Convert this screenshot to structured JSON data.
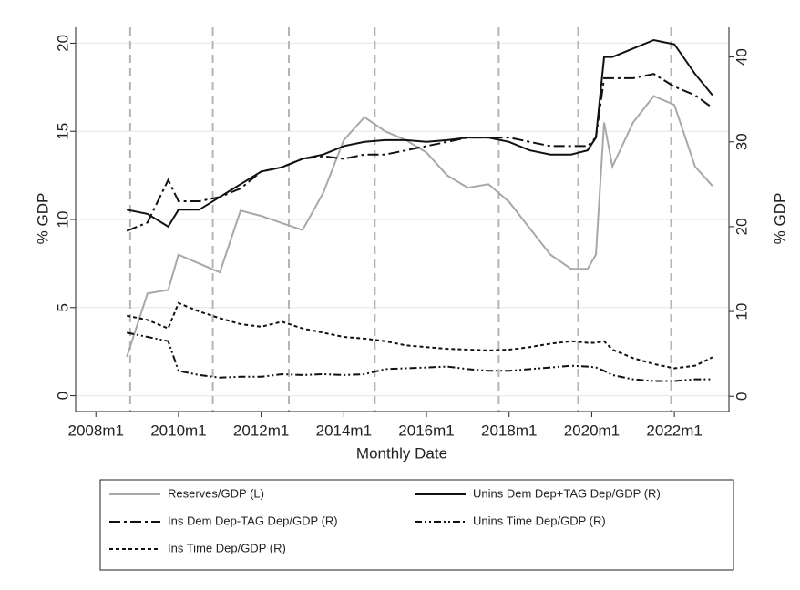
{
  "chart_data": {
    "type": "line",
    "xlabel": "Monthly Date",
    "ylabel": "% GDP",
    "y2label": "% GDP",
    "x": [
      2008.75,
      2009.25,
      2009.75,
      2010.0,
      2010.5,
      2011.0,
      2011.5,
      2012.0,
      2012.5,
      2013.0,
      2013.5,
      2014.0,
      2014.5,
      2015.0,
      2015.5,
      2016.0,
      2016.5,
      2017.0,
      2017.5,
      2018.0,
      2018.5,
      2019.0,
      2019.5,
      2019.9,
      2020.1,
      2020.3,
      2020.5,
      2021.0,
      2021.5,
      2022.0,
      2022.5,
      2022.92
    ],
    "series": [
      {
        "name": "Reserves/GDP (L)",
        "color": "#a8a8a8",
        "dash": "none",
        "axis": "y",
        "values": [
          2.2,
          5.8,
          6.0,
          8.0,
          7.5,
          7.0,
          10.5,
          10.2,
          9.8,
          9.4,
          11.5,
          14.5,
          15.8,
          15.0,
          14.5,
          13.8,
          12.5,
          11.8,
          12.0,
          11.0,
          9.5,
          8.0,
          7.2,
          7.2,
          8.0,
          15.5,
          13.0,
          15.5,
          17.0,
          16.5,
          13.0,
          11.9
        ]
      },
      {
        "name": "Unins Dem Dep+TAG Dep/GDP (R)",
        "color": "#111111",
        "dash": "none",
        "axis": "y2",
        "values": [
          22,
          21.5,
          20,
          22,
          22,
          23.5,
          25,
          26.5,
          27,
          28,
          28.5,
          29.5,
          30,
          30.2,
          30.2,
          30,
          30.2,
          30.5,
          30.5,
          30,
          29,
          28.5,
          28.5,
          29,
          30.5,
          40,
          40,
          41,
          42,
          41.5,
          38,
          35.5
        ]
      },
      {
        "name": "Ins Dem Dep-TAG Dep/GDP (R)",
        "color": "#111111",
        "dash": "12,4,3,4",
        "axis": "y2",
        "values": [
          19.5,
          20.5,
          25.5,
          23,
          23,
          23.5,
          24.5,
          26.5,
          27,
          28,
          28.3,
          28,
          28.5,
          28.5,
          29,
          29.5,
          30,
          30.5,
          30.5,
          30.5,
          30,
          29.5,
          29.5,
          29.5,
          30.5,
          37.5,
          37.5,
          37.5,
          38,
          36.5,
          35.5,
          34
        ]
      },
      {
        "name": "Unins Time Dep/GDP (R)",
        "color": "#111111",
        "dash": "8,3,2,3,2,3",
        "axis": "y2",
        "values": [
          7.5,
          7,
          6.5,
          3,
          2.5,
          2.2,
          2.3,
          2.3,
          2.6,
          2.5,
          2.6,
          2.5,
          2.6,
          3.2,
          3.3,
          3.4,
          3.5,
          3.2,
          3.0,
          3.0,
          3.2,
          3.4,
          3.6,
          3.5,
          3.4,
          3.0,
          2.5,
          2.0,
          1.8,
          1.8,
          2.0,
          2.0
        ]
      },
      {
        "name": "Ins Time Dep/GDP (R)",
        "color": "#111111",
        "dash": "4,3",
        "axis": "y2",
        "values": [
          9.5,
          9,
          8,
          11,
          10,
          9.2,
          8.5,
          8.2,
          8.8,
          8,
          7.5,
          7,
          6.8,
          6.5,
          6,
          5.8,
          5.6,
          5.5,
          5.4,
          5.5,
          5.8,
          6.2,
          6.5,
          6.3,
          6.3,
          6.5,
          5.5,
          4.5,
          3.8,
          3.3,
          3.6,
          4.6
        ]
      }
    ],
    "vlines": [
      2008.83,
      2010.83,
      2012.67,
      2014.75,
      2017.75,
      2019.67,
      2021.92
    ],
    "xlim": [
      2007.51,
      2023.32
    ],
    "xticks": [
      {
        "value": 2008,
        "label": "2008m1"
      },
      {
        "value": 2010,
        "label": "2010m1"
      },
      {
        "value": 2012,
        "label": "2012m1"
      },
      {
        "value": 2014,
        "label": "2014m1"
      },
      {
        "value": 2016,
        "label": "2016m1"
      },
      {
        "value": 2018,
        "label": "2018m1"
      },
      {
        "value": 2020,
        "label": "2020m1"
      },
      {
        "value": 2022,
        "label": "2022m1"
      }
    ],
    "ylim": [
      -0.9,
      20.9
    ],
    "yticks": [
      0,
      5,
      10,
      15,
      20
    ],
    "y2lim": [
      -1.8,
      43.5
    ],
    "y2ticks": [
      0,
      10,
      20,
      30,
      40
    ],
    "grid": true
  }
}
